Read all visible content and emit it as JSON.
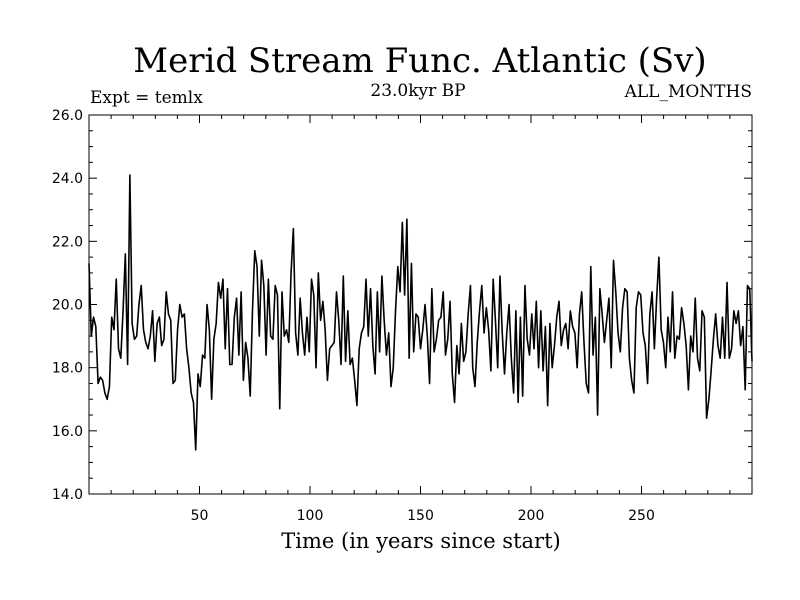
{
  "chart_data": {
    "type": "line",
    "title": "Merid Stream Func. Atlantic (Sv)",
    "subtitle": "23.0kyr BP",
    "annotation_left": "Expt = temlx",
    "annotation_right": "ALL_MONTHS",
    "xlabel": "Time (in years since start)",
    "ylabel": "",
    "xlim": [
      0,
      300
    ],
    "ylim": [
      14.0,
      26.0
    ],
    "xticks": [
      50,
      100,
      150,
      200,
      250
    ],
    "yticks": [
      14.0,
      16.0,
      18.0,
      20.0,
      22.0,
      24.0,
      26.0
    ],
    "xtick_labels": [
      "50",
      "100",
      "150",
      "200",
      "250"
    ],
    "ytick_labels": [
      "14.0",
      "16.0",
      "18.0",
      "20.0",
      "22.0",
      "24.0",
      "26.0"
    ],
    "grid": false,
    "series": [
      {
        "values": [
          21.3,
          19.0,
          19.6,
          19.3,
          17.5,
          17.7,
          17.6,
          17.2,
          17.0,
          17.4,
          19.6,
          19.2,
          20.8,
          18.6,
          18.3,
          19.8,
          21.6,
          18.1,
          24.1,
          19.4,
          18.9,
          19.0,
          20.0,
          20.6,
          19.2,
          18.8,
          18.6,
          19.0,
          19.8,
          18.2,
          19.4,
          19.6,
          18.7,
          18.9,
          20.4,
          19.7,
          19.5,
          17.5,
          17.6,
          19.2,
          20.0,
          19.6,
          19.7,
          18.6,
          18.0,
          17.2,
          16.9,
          15.4,
          17.8,
          17.4,
          18.4,
          18.3,
          20.0,
          19.2,
          17.0,
          18.9,
          19.4,
          20.7,
          20.2,
          20.8,
          18.6,
          20.5,
          18.1,
          18.1,
          19.6,
          20.2,
          18.4,
          20.4,
          17.6,
          18.8,
          18.3,
          17.1,
          19.8,
          21.7,
          21.2,
          19.0,
          21.4,
          20.6,
          18.4,
          20.8,
          19.0,
          18.9,
          20.6,
          20.3,
          16.7,
          20.4,
          19.0,
          19.2,
          18.8,
          21.0,
          22.4,
          19.1,
          18.4,
          20.2,
          19.1,
          18.4,
          19.6,
          18.5,
          20.8,
          20.3,
          18.0,
          21.0,
          19.5,
          20.1,
          19.2,
          17.6,
          18.6,
          18.7,
          18.8,
          20.4,
          19.5,
          18.1,
          20.9,
          18.2,
          19.8,
          18.1,
          18.3,
          17.6,
          16.8,
          18.6,
          19.1,
          19.3,
          20.8,
          19.0,
          20.5,
          18.7,
          17.8,
          20.4,
          18.5,
          20.9,
          19.5,
          18.4,
          19.1,
          17.4,
          18.0,
          19.8,
          21.2,
          20.4,
          22.6,
          20.3,
          22.7,
          18.3,
          21.3,
          18.5,
          19.7,
          19.6,
          18.6,
          19.2,
          20.0,
          19.0,
          17.5,
          20.5,
          18.5,
          18.9,
          19.5,
          19.6,
          20.4,
          18.4,
          18.9,
          20.1,
          17.8,
          16.9,
          18.7,
          17.8,
          19.4,
          18.2,
          18.5,
          19.7,
          20.6,
          18.0,
          17.4,
          18.8,
          19.8,
          20.6,
          19.1,
          19.9,
          19.2,
          17.9,
          20.8,
          19.5,
          18.0,
          20.9,
          19.1,
          17.8,
          19.1,
          20.0,
          18.3,
          17.2,
          19.8,
          16.9,
          19.6,
          17.1,
          20.6,
          18.9,
          18.4,
          19.7,
          18.6,
          20.1,
          18.0,
          19.8,
          17.9,
          19.3,
          16.8,
          19.4,
          18.0,
          18.7,
          19.6,
          20.1,
          18.7,
          19.2,
          19.4,
          18.6,
          19.8,
          19.3,
          19.1,
          18.0,
          19.7,
          20.4,
          18.8,
          17.5,
          17.2,
          21.2,
          18.4,
          19.6,
          16.5,
          20.5,
          19.7,
          18.8,
          19.5,
          20.2,
          18.0,
          21.4,
          20.4,
          19.1,
          18.5,
          19.9,
          20.5,
          20.4,
          18.3,
          17.6,
          17.2,
          19.9,
          20.4,
          20.3,
          19.1,
          18.7,
          17.5,
          19.7,
          20.4,
          18.6,
          20.2,
          21.5,
          19.2,
          18.8,
          18.0,
          19.6,
          18.5,
          20.4,
          18.3,
          19.0,
          18.9,
          19.9,
          19.4,
          18.7,
          17.3,
          19.0,
          18.5,
          20.2,
          18.3,
          17.9,
          19.8,
          19.6,
          16.4,
          17.0,
          17.9,
          18.9,
          19.7,
          18.7,
          18.3,
          19.6,
          18.3,
          20.7,
          18.3,
          18.6,
          19.8,
          19.4,
          19.8,
          18.7,
          19.3,
          17.3,
          20.6,
          20.5,
          18.2
        ]
      }
    ]
  }
}
